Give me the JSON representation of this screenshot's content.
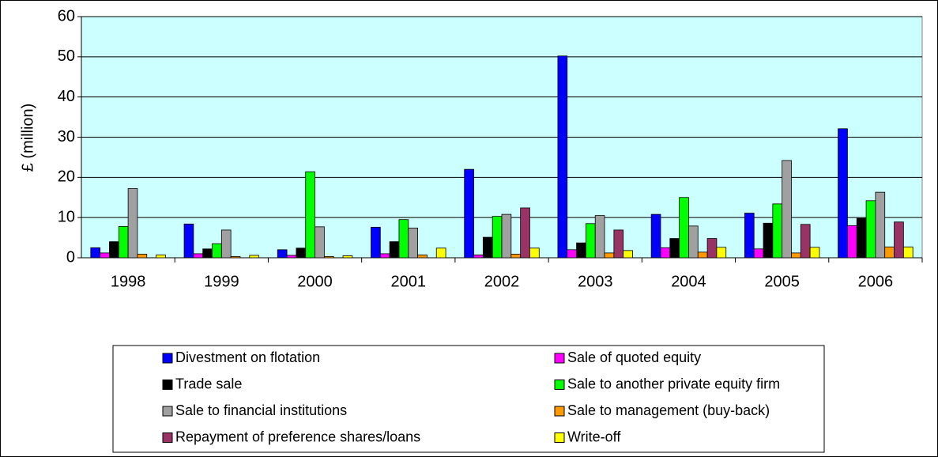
{
  "chart_data": {
    "type": "bar",
    "y_label": "£ (million)",
    "categories": [
      "1998",
      "1999",
      "2000",
      "2001",
      "2002",
      "2003",
      "2004",
      "2005",
      "2006"
    ],
    "series": [
      {
        "name": "Divestment on flotation",
        "color": "#0000ff",
        "values": [
          2.5,
          8.4,
          2.0,
          7.6,
          22.0,
          50.2,
          10.8,
          11.1,
          32.1
        ]
      },
      {
        "name": "Sale of quoted equity",
        "color": "#ff00ff",
        "values": [
          1.2,
          1.0,
          0.6,
          1.0,
          0.7,
          2.0,
          2.5,
          2.2,
          8.0
        ]
      },
      {
        "name": "Trade sale",
        "color": "#000000",
        "values": [
          4.0,
          2.2,
          2.4,
          4.0,
          5.1,
          3.7,
          4.8,
          8.6,
          9.8
        ]
      },
      {
        "name": "Sale to another private equity firm",
        "color": "#00ff00",
        "values": [
          7.8,
          3.5,
          21.4,
          9.5,
          10.3,
          8.5,
          15.0,
          13.4,
          14.2
        ]
      },
      {
        "name": "Sale to financial institutions",
        "color": "#a0a0a0",
        "values": [
          17.2,
          6.9,
          7.7,
          7.4,
          10.8,
          10.5,
          7.9,
          24.2,
          16.3
        ]
      },
      {
        "name": "Sale to management (buy-back)",
        "color": "#ff9900",
        "values": [
          0.9,
          0.3,
          0.3,
          0.7,
          0.9,
          1.2,
          1.4,
          1.2,
          2.7
        ]
      },
      {
        "name": "Repayment of preference shares/loans",
        "color": "#993366",
        "values": [
          0,
          0,
          0,
          0,
          12.4,
          6.9,
          4.8,
          8.3,
          8.9
        ]
      },
      {
        "name": "Write-off",
        "color": "#ffff00",
        "values": [
          0.7,
          0.6,
          0.5,
          2.4,
          2.4,
          1.8,
          2.6,
          2.6,
          2.7
        ]
      }
    ],
    "ylim": [
      0,
      60
    ],
    "yticks": [
      0,
      10,
      20,
      30,
      40,
      50,
      60
    ],
    "grid": true,
    "legend": "bottom",
    "plot_background": "#ccffff"
  }
}
